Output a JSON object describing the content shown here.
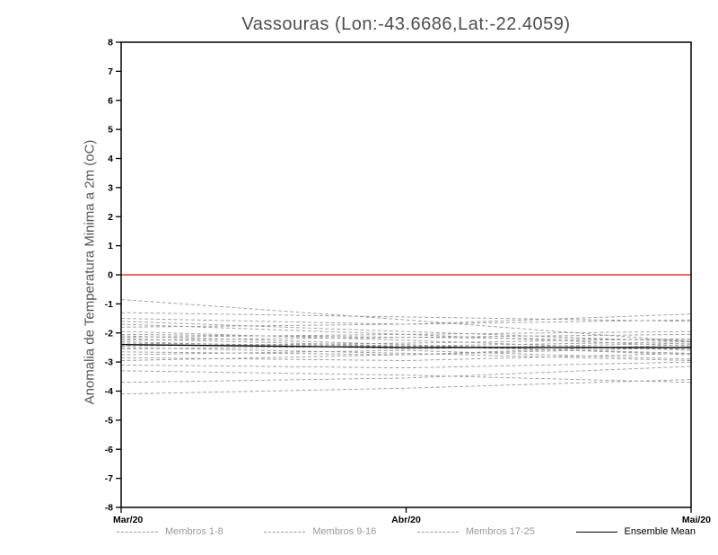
{
  "title": "Vassouras (Lon:-43.6686,Lat:-22.4059)",
  "chart_data": {
    "type": "line",
    "title": "Vassouras (Lon:-43.6686,Lat:-22.4059)",
    "ylabel": "Anomalia de Temperatura Minima a 2m (oC)",
    "xlabel": "",
    "x_ticks": [
      "Mar/20",
      "Abr/20",
      "Mai/20"
    ],
    "ylim": [
      -8,
      8
    ],
    "y_tick_step": 1,
    "grid": false,
    "legend_position": "bottom",
    "zero_line_value": 0,
    "zero_line_color": "#e8392f",
    "member_color": "#9a9a9a",
    "mean_color": "#000000",
    "groups": [
      {
        "label": "Membros 1-8",
        "style": "dashed"
      },
      {
        "label": "Membros 9-16",
        "style": "dashed"
      },
      {
        "label": "Membros 17-25",
        "style": "dashed"
      }
    ],
    "mean_label": "Ensemble Mean",
    "members": [
      [
        -0.85,
        -1.55,
        -2.3
      ],
      [
        -1.3,
        -1.45,
        -1.6
      ],
      [
        -1.5,
        -1.7,
        -1.35
      ],
      [
        -1.6,
        -1.95,
        -2.3
      ],
      [
        -1.7,
        -2.05,
        -2.45
      ],
      [
        -1.8,
        -1.7,
        -1.55
      ],
      [
        -1.95,
        -2.25,
        -2.6
      ],
      [
        -2.05,
        -2.15,
        -2.25
      ],
      [
        -2.1,
        -2.4,
        -2.75
      ],
      [
        -2.15,
        -2.05,
        -1.95
      ],
      [
        -2.2,
        -2.45,
        -2.7
      ],
      [
        -2.25,
        -2.15,
        -2.05
      ],
      [
        -2.3,
        -2.55,
        -2.35
      ],
      [
        -2.35,
        -2.45,
        -2.55
      ],
      [
        -2.45,
        -2.35,
        -2.2
      ],
      [
        -2.5,
        -2.7,
        -2.95
      ],
      [
        -2.55,
        -2.45,
        -2.3
      ],
      [
        -2.65,
        -2.75,
        -2.5
      ],
      [
        -2.75,
        -2.6,
        -2.9
      ],
      [
        -2.85,
        -2.95,
        -2.7
      ],
      [
        -2.95,
        -2.75,
        -2.4
      ],
      [
        -3.1,
        -3.2,
        -3.0
      ],
      [
        -3.3,
        -3.45,
        -3.7
      ],
      [
        -3.7,
        -3.55,
        -3.15
      ],
      [
        -4.1,
        -3.9,
        -3.6
      ]
    ],
    "ensemble_mean": [
      -2.4,
      -2.5,
      -2.5
    ]
  }
}
